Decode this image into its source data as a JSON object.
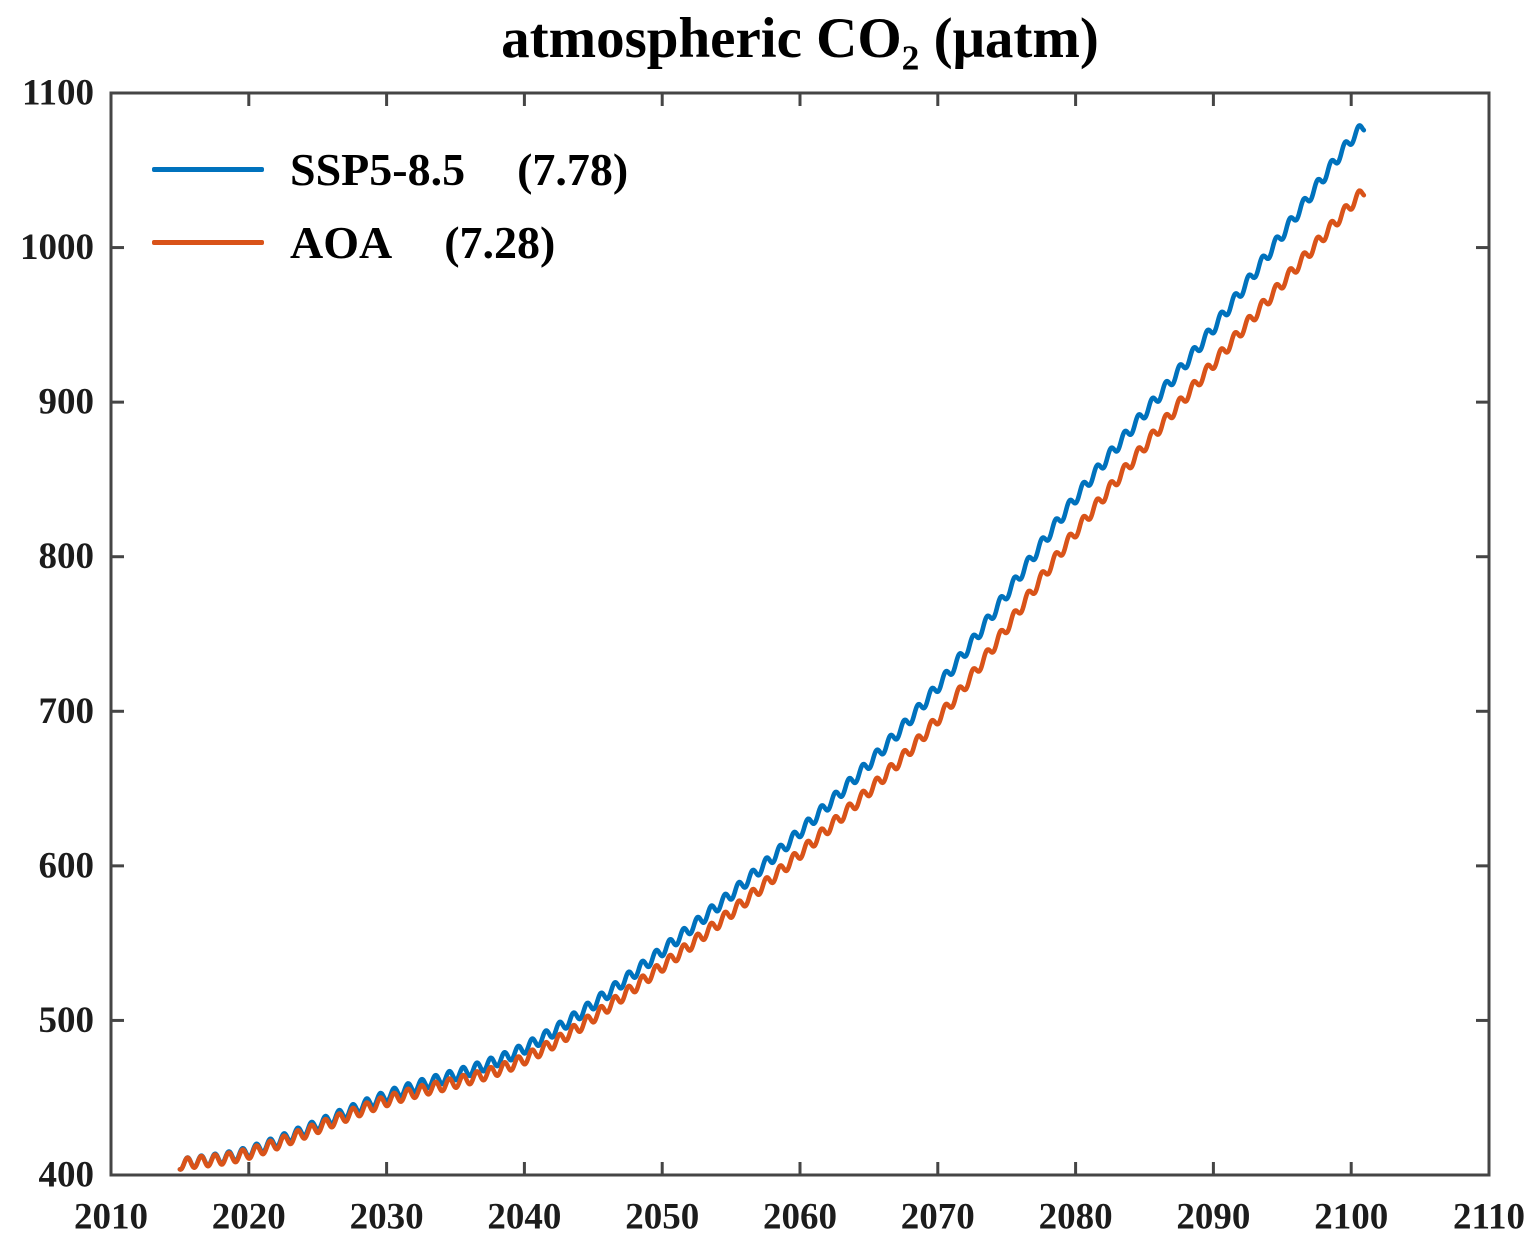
{
  "figure": {
    "title_main": "atmospheric CO",
    "title_sub": "2",
    "title_unit": " (μatm)"
  },
  "chart_data": {
    "type": "line",
    "title": "atmospheric CO2 (μatm)",
    "xlabel": "",
    "ylabel": "",
    "x_range": [
      2010,
      2110
    ],
    "y_range": [
      400,
      1100
    ],
    "x_ticks": [
      2010,
      2020,
      2030,
      2040,
      2050,
      2060,
      2070,
      2080,
      2090,
      2100,
      2110
    ],
    "y_ticks": [
      400,
      500,
      600,
      700,
      800,
      900,
      1000,
      1100
    ],
    "grid": false,
    "legend_position": "upper-left-inside",
    "axis_color": "#454545",
    "text_color": "#1c1c1c",
    "seasonal_cycle_amplitude": 3.5,
    "seasonal_cycle_period_years": 1,
    "series": [
      {
        "name": "SSP5-8.5",
        "value_label": "(7.78)",
        "color": "#0072BD",
        "x_start": 2015.0,
        "x_end": 2100.92,
        "anchor_points": [
          [
            2015,
            407
          ],
          [
            2020,
            415
          ],
          [
            2030,
            451
          ],
          [
            2040,
            482
          ],
          [
            2050,
            545
          ],
          [
            2060,
            622
          ],
          [
            2070,
            716
          ],
          [
            2080,
            838
          ],
          [
            2090,
            948
          ],
          [
            2100,
            1070
          ],
          [
            2101,
            1079
          ]
        ]
      },
      {
        "name": "AOA",
        "value_label": "(7.28)",
        "color": "#D95319",
        "x_start": 2015.0,
        "x_end": 2100.92,
        "anchor_points": [
          [
            2015,
            407
          ],
          [
            2020,
            414
          ],
          [
            2030,
            448
          ],
          [
            2040,
            475
          ],
          [
            2050,
            535
          ],
          [
            2060,
            608
          ],
          [
            2070,
            695
          ],
          [
            2080,
            816
          ],
          [
            2090,
            925
          ],
          [
            2100,
            1028
          ],
          [
            2101,
            1037
          ]
        ]
      }
    ]
  }
}
